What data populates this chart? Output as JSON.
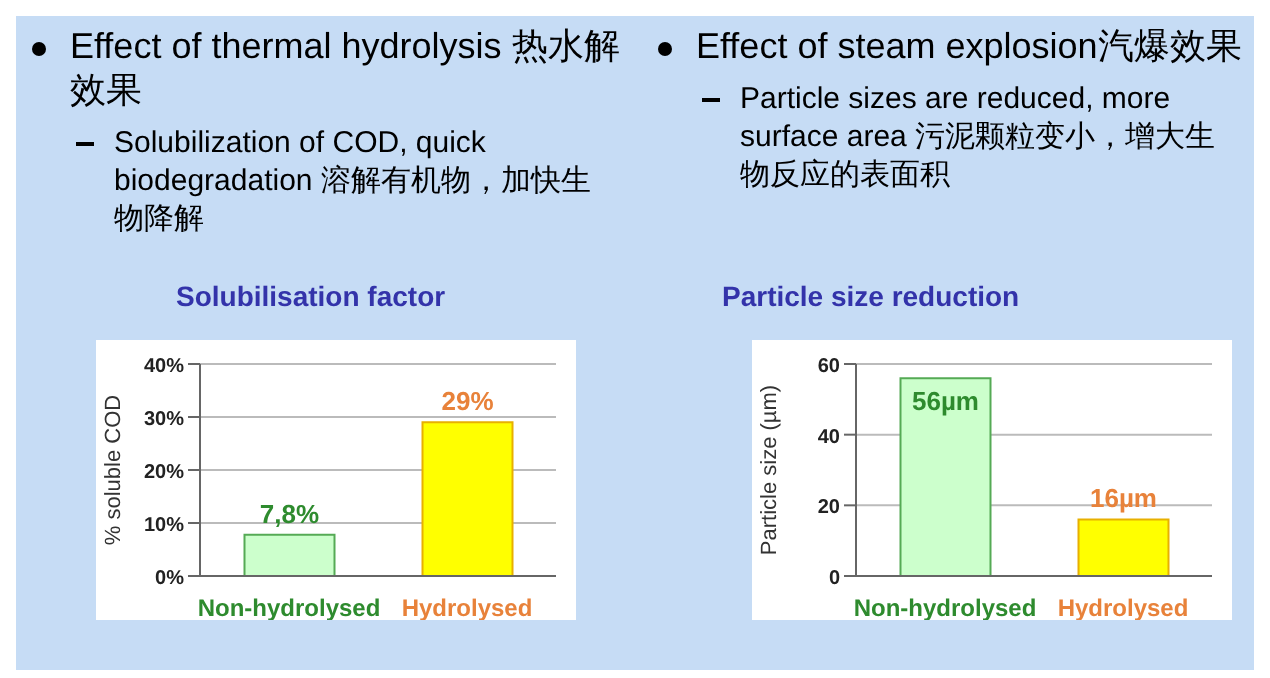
{
  "chart_data": [
    {
      "type": "bar",
      "title": "Solubilisation factor",
      "annotations": [
        "Effect of thermal hydrolysis 热水解效果",
        "Solubilization of COD, quick biodegradation 溶解有机物，加快生物降解"
      ],
      "categories": [
        "Non-hydrolysed",
        "Hydrolysed"
      ],
      "values": [
        7.8,
        29
      ],
      "colors": [
        "#ccffcc",
        "#ffff00"
      ],
      "value_labels": [
        "7,8%",
        "29%"
      ],
      "ylabel": "% soluble COD",
      "ylim": [
        0,
        40
      ],
      "yticks": [
        {
          "value": 0,
          "label": "0%"
        },
        {
          "value": 10,
          "label": "10%"
        },
        {
          "value": 20,
          "label": "20%"
        },
        {
          "value": 30,
          "label": "30%"
        },
        {
          "value": 40,
          "label": "40%"
        }
      ],
      "grid": "y"
    },
    {
      "type": "bar",
      "title": "Particle size reduction",
      "annotations": [
        "Effect of steam explosion汽爆效果",
        "Particle sizes are reduced, more surface area 污泥颗粒变小，增大生物反应的表面积"
      ],
      "categories": [
        "Non-hydrolysed",
        "Hydrolysed"
      ],
      "values": [
        56,
        16
      ],
      "colors": [
        "#ccffcc",
        "#ffff00"
      ],
      "value_labels": [
        "56µm",
        "16µm"
      ],
      "ylabel": "Particle size (µm)",
      "ylim": [
        0,
        60
      ],
      "yticks": [
        0,
        20,
        40,
        60
      ],
      "grid": "y"
    }
  ]
}
